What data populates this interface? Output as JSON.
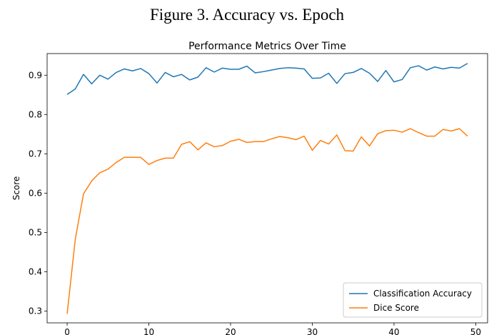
{
  "figure": {
    "caption": "Figure 3. Accuracy vs. Epoch"
  },
  "chart_data": {
    "type": "line",
    "title": "Performance Metrics Over Time",
    "xlabel": "",
    "ylabel": "Score",
    "xlim": [
      -2.45,
      51.45
    ],
    "ylim": [
      0.27,
      0.955
    ],
    "xticks": [
      0,
      10,
      20,
      30,
      40,
      50
    ],
    "yticks": [
      0.3,
      0.4,
      0.5,
      0.6,
      0.7,
      0.8,
      0.9
    ],
    "grid": false,
    "legend_position": "lower-right",
    "x": [
      0,
      1,
      2,
      3,
      4,
      5,
      6,
      7,
      8,
      9,
      10,
      11,
      12,
      13,
      14,
      15,
      16,
      17,
      18,
      19,
      20,
      21,
      22,
      23,
      24,
      25,
      26,
      27,
      28,
      29,
      30,
      31,
      32,
      33,
      34,
      35,
      36,
      37,
      38,
      39,
      40,
      41,
      42,
      43,
      44,
      45,
      46,
      47,
      48,
      49
    ],
    "series": [
      {
        "name": "Classification Accuracy",
        "color": "#1f77b4",
        "values": [
          0.851,
          0.865,
          0.902,
          0.878,
          0.9,
          0.89,
          0.907,
          0.916,
          0.911,
          0.917,
          0.904,
          0.88,
          0.907,
          0.896,
          0.902,
          0.888,
          0.895,
          0.919,
          0.908,
          0.918,
          0.915,
          0.915,
          0.923,
          0.906,
          0.909,
          0.913,
          0.917,
          0.919,
          0.918,
          0.916,
          0.892,
          0.893,
          0.905,
          0.879,
          0.904,
          0.907,
          0.917,
          0.905,
          0.884,
          0.912,
          0.883,
          0.889,
          0.919,
          0.924,
          0.913,
          0.921,
          0.916,
          0.92,
          0.918,
          0.93
        ]
      },
      {
        "name": "Dice Score",
        "color": "#ff7f0e",
        "values": [
          0.293,
          0.483,
          0.598,
          0.631,
          0.652,
          0.661,
          0.678,
          0.691,
          0.691,
          0.691,
          0.673,
          0.683,
          0.689,
          0.689,
          0.724,
          0.731,
          0.71,
          0.728,
          0.718,
          0.721,
          0.732,
          0.737,
          0.729,
          0.731,
          0.731,
          0.738,
          0.744,
          0.741,
          0.736,
          0.745,
          0.709,
          0.734,
          0.725,
          0.748,
          0.708,
          0.707,
          0.743,
          0.72,
          0.751,
          0.759,
          0.76,
          0.755,
          0.764,
          0.754,
          0.745,
          0.745,
          0.762,
          0.758,
          0.764,
          0.745
        ]
      }
    ]
  }
}
